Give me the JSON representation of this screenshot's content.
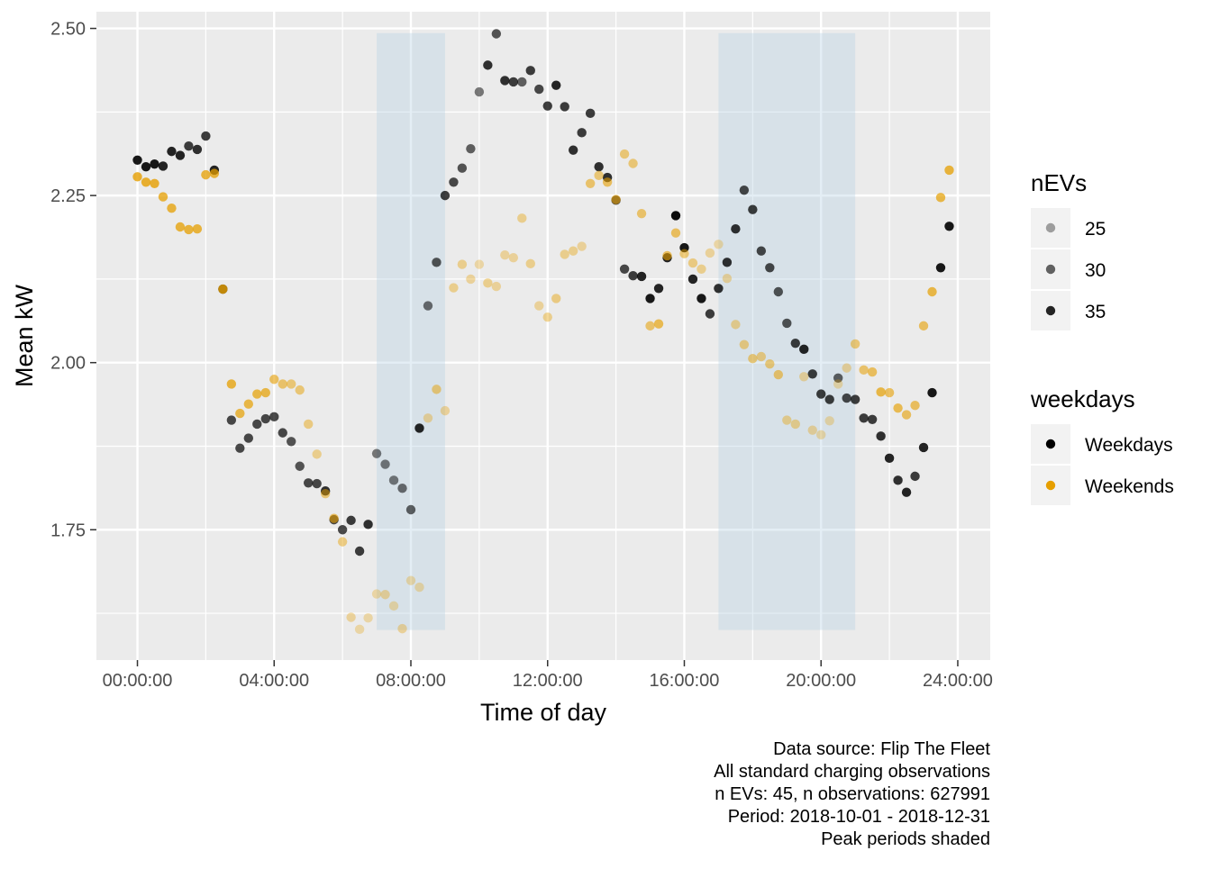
{
  "chart_data": {
    "type": "scatter",
    "xlabel": "Time of day",
    "ylabel": "Mean kW",
    "x_unit": "hours",
    "xlim": [
      -1.2,
      24.95
    ],
    "ylim": [
      1.555,
      2.525
    ],
    "x_ticks": [
      0,
      4,
      8,
      12,
      16,
      20,
      24
    ],
    "x_tick_labels": [
      "00:00:00",
      "04:00:00",
      "08:00:00",
      "12:00:00",
      "16:00:00",
      "20:00:00",
      "24:00:00"
    ],
    "y_ticks": [
      1.75,
      2.0,
      2.25,
      2.5
    ],
    "y_tick_labels": [
      "1.75",
      "2.00",
      "2.25",
      "2.50"
    ],
    "grid": true,
    "shaded_periods": [
      {
        "start": 7,
        "end": 9,
        "ymin": 1.6,
        "ymax": 2.493
      },
      {
        "start": 17,
        "end": 21,
        "ymin": 1.6,
        "ymax": 2.493
      }
    ],
    "legend": {
      "placement": "right",
      "size_title": "nEVs",
      "size_items": [
        {
          "label": "25",
          "alpha": 0.35
        },
        {
          "label": "30",
          "alpha": 0.6
        },
        {
          "label": "35",
          "alpha": 0.85
        }
      ],
      "color_title": "weekdays",
      "color_items": [
        {
          "label": "Weekdays",
          "color": "#000000"
        },
        {
          "label": "Weekends",
          "color": "#E69F00"
        }
      ]
    },
    "series": [
      {
        "name": "Weekdays",
        "color": "#000000",
        "points": [
          [
            0.0,
            2.303,
            0.9
          ],
          [
            0.25,
            2.293,
            0.9
          ],
          [
            0.5,
            2.297,
            0.9
          ],
          [
            0.75,
            2.294,
            0.85
          ],
          [
            1.0,
            2.316,
            0.85
          ],
          [
            1.25,
            2.31,
            0.85
          ],
          [
            1.5,
            2.324,
            0.75
          ],
          [
            1.75,
            2.319,
            0.8
          ],
          [
            2.0,
            2.339,
            0.75
          ],
          [
            2.25,
            2.288,
            0.85
          ],
          [
            2.5,
            2.11,
            0.8
          ],
          [
            2.75,
            1.914,
            0.7
          ],
          [
            3.0,
            1.872,
            0.7
          ],
          [
            3.25,
            1.887,
            0.7
          ],
          [
            3.5,
            1.908,
            0.7
          ],
          [
            3.75,
            1.916,
            0.7
          ],
          [
            4.0,
            1.919,
            0.7
          ],
          [
            4.25,
            1.895,
            0.7
          ],
          [
            4.5,
            1.882,
            0.65
          ],
          [
            4.75,
            1.845,
            0.65
          ],
          [
            5.0,
            1.82,
            0.7
          ],
          [
            5.25,
            1.819,
            0.7
          ],
          [
            5.5,
            1.808,
            0.8
          ],
          [
            5.75,
            1.765,
            0.7
          ],
          [
            6.0,
            1.75,
            0.7
          ],
          [
            6.25,
            1.764,
            0.75
          ],
          [
            6.5,
            1.718,
            0.75
          ],
          [
            6.75,
            1.758,
            0.8
          ],
          [
            7.0,
            1.864,
            0.5
          ],
          [
            7.25,
            1.848,
            0.5
          ],
          [
            7.5,
            1.824,
            0.5
          ],
          [
            7.75,
            1.812,
            0.55
          ],
          [
            8.0,
            1.78,
            0.6
          ],
          [
            8.25,
            1.902,
            0.85
          ],
          [
            8.5,
            2.085,
            0.55
          ],
          [
            8.75,
            2.15,
            0.65
          ],
          [
            9.0,
            2.25,
            0.75
          ],
          [
            9.25,
            2.27,
            0.7
          ],
          [
            9.5,
            2.291,
            0.65
          ],
          [
            9.75,
            2.32,
            0.6
          ],
          [
            10.0,
            2.405,
            0.5
          ],
          [
            10.25,
            2.445,
            0.8
          ],
          [
            10.5,
            2.492,
            0.65
          ],
          [
            10.75,
            2.422,
            0.8
          ],
          [
            11.0,
            2.42,
            0.75
          ],
          [
            11.25,
            2.42,
            0.6
          ],
          [
            11.5,
            2.437,
            0.75
          ],
          [
            11.75,
            2.409,
            0.7
          ],
          [
            12.0,
            2.384,
            0.75
          ],
          [
            12.25,
            2.415,
            0.85
          ],
          [
            12.5,
            2.383,
            0.75
          ],
          [
            12.75,
            2.318,
            0.8
          ],
          [
            13.0,
            2.344,
            0.75
          ],
          [
            13.25,
            2.373,
            0.75
          ],
          [
            13.5,
            2.293,
            0.8
          ],
          [
            13.75,
            2.277,
            0.8
          ],
          [
            14.0,
            2.243,
            0.7
          ],
          [
            14.25,
            2.14,
            0.7
          ],
          [
            14.5,
            2.13,
            0.75
          ],
          [
            14.75,
            2.129,
            0.85
          ],
          [
            15.0,
            2.096,
            0.9
          ],
          [
            15.25,
            2.111,
            0.85
          ],
          [
            15.5,
            2.157,
            0.85
          ],
          [
            15.75,
            2.22,
            0.95
          ],
          [
            16.0,
            2.172,
            0.9
          ],
          [
            16.25,
            2.125,
            0.85
          ],
          [
            16.5,
            2.096,
            0.9
          ],
          [
            16.75,
            2.073,
            0.75
          ],
          [
            17.0,
            2.111,
            0.8
          ],
          [
            17.25,
            2.15,
            0.8
          ],
          [
            17.5,
            2.2,
            0.8
          ],
          [
            17.75,
            2.258,
            0.7
          ],
          [
            18.0,
            2.229,
            0.75
          ],
          [
            18.25,
            2.167,
            0.7
          ],
          [
            18.5,
            2.142,
            0.7
          ],
          [
            18.75,
            2.106,
            0.65
          ],
          [
            19.0,
            2.059,
            0.65
          ],
          [
            19.25,
            2.029,
            0.75
          ],
          [
            19.5,
            2.02,
            0.85
          ],
          [
            19.75,
            1.983,
            0.75
          ],
          [
            20.0,
            1.953,
            0.75
          ],
          [
            20.25,
            1.945,
            0.75
          ],
          [
            20.5,
            1.977,
            0.6
          ],
          [
            20.75,
            1.947,
            0.7
          ],
          [
            21.0,
            1.945,
            0.75
          ],
          [
            21.25,
            1.917,
            0.75
          ],
          [
            21.5,
            1.915,
            0.75
          ],
          [
            21.75,
            1.89,
            0.8
          ],
          [
            22.0,
            1.857,
            0.85
          ],
          [
            22.25,
            1.824,
            0.8
          ],
          [
            22.5,
            1.806,
            0.85
          ],
          [
            22.75,
            1.83,
            0.75
          ],
          [
            23.0,
            1.873,
            0.85
          ],
          [
            23.25,
            1.955,
            0.9
          ],
          [
            23.5,
            2.142,
            0.9
          ],
          [
            23.75,
            2.204,
            0.9
          ]
        ]
      },
      {
        "name": "Weekends",
        "color": "#E69F00",
        "points": [
          [
            0.0,
            2.278,
            0.8
          ],
          [
            0.25,
            2.27,
            0.8
          ],
          [
            0.5,
            2.268,
            0.8
          ],
          [
            0.75,
            2.248,
            0.75
          ],
          [
            1.0,
            2.231,
            0.75
          ],
          [
            1.25,
            2.203,
            0.75
          ],
          [
            1.5,
            2.199,
            0.75
          ],
          [
            1.75,
            2.2,
            0.75
          ],
          [
            2.0,
            2.281,
            0.75
          ],
          [
            2.25,
            2.283,
            0.75
          ],
          [
            2.5,
            2.11,
            0.8
          ],
          [
            2.75,
            1.968,
            0.75
          ],
          [
            3.0,
            1.924,
            0.7
          ],
          [
            3.25,
            1.938,
            0.7
          ],
          [
            3.5,
            1.953,
            0.7
          ],
          [
            3.75,
            1.955,
            0.7
          ],
          [
            4.0,
            1.975,
            0.6
          ],
          [
            4.25,
            1.968,
            0.55
          ],
          [
            4.5,
            1.968,
            0.5
          ],
          [
            4.75,
            1.959,
            0.5
          ],
          [
            5.0,
            1.908,
            0.45
          ],
          [
            5.25,
            1.863,
            0.4
          ],
          [
            5.5,
            1.804,
            0.5
          ],
          [
            5.75,
            1.767,
            0.6
          ],
          [
            6.0,
            1.732,
            0.45
          ],
          [
            6.25,
            1.619,
            0.35
          ],
          [
            6.5,
            1.601,
            0.3
          ],
          [
            6.75,
            1.618,
            0.3
          ],
          [
            7.0,
            1.654,
            0.3
          ],
          [
            7.25,
            1.653,
            0.35
          ],
          [
            7.5,
            1.636,
            0.3
          ],
          [
            7.75,
            1.602,
            0.35
          ],
          [
            8.0,
            1.674,
            0.3
          ],
          [
            8.25,
            1.664,
            0.3
          ],
          [
            8.5,
            1.917,
            0.35
          ],
          [
            8.75,
            1.96,
            0.5
          ],
          [
            9.0,
            1.928,
            0.35
          ],
          [
            9.25,
            2.112,
            0.4
          ],
          [
            9.5,
            2.147,
            0.4
          ],
          [
            9.75,
            2.125,
            0.35
          ],
          [
            10.0,
            2.147,
            0.3
          ],
          [
            10.25,
            2.119,
            0.4
          ],
          [
            10.5,
            2.114,
            0.35
          ],
          [
            10.75,
            2.161,
            0.35
          ],
          [
            11.0,
            2.157,
            0.35
          ],
          [
            11.25,
            2.216,
            0.4
          ],
          [
            11.5,
            2.148,
            0.4
          ],
          [
            11.75,
            2.085,
            0.35
          ],
          [
            12.0,
            2.068,
            0.4
          ],
          [
            12.25,
            2.096,
            0.45
          ],
          [
            12.5,
            2.162,
            0.4
          ],
          [
            12.75,
            2.167,
            0.4
          ],
          [
            13.0,
            2.174,
            0.35
          ],
          [
            13.25,
            2.268,
            0.55
          ],
          [
            13.5,
            2.28,
            0.5
          ],
          [
            13.75,
            2.27,
            0.6
          ],
          [
            14.0,
            2.244,
            0.6
          ],
          [
            14.25,
            2.312,
            0.5
          ],
          [
            14.5,
            2.298,
            0.5
          ],
          [
            14.75,
            2.223,
            0.55
          ],
          [
            15.0,
            2.055,
            0.55
          ],
          [
            15.25,
            2.058,
            0.65
          ],
          [
            15.5,
            2.16,
            0.6
          ],
          [
            15.75,
            2.194,
            0.6
          ],
          [
            16.0,
            2.163,
            0.5
          ],
          [
            16.25,
            2.149,
            0.45
          ],
          [
            16.5,
            2.14,
            0.4
          ],
          [
            16.75,
            2.164,
            0.35
          ],
          [
            17.0,
            2.177,
            0.3
          ],
          [
            17.25,
            2.126,
            0.35
          ],
          [
            17.5,
            2.057,
            0.4
          ],
          [
            17.75,
            2.027,
            0.45
          ],
          [
            18.0,
            2.006,
            0.5
          ],
          [
            18.25,
            2.009,
            0.45
          ],
          [
            18.5,
            1.998,
            0.5
          ],
          [
            18.75,
            1.982,
            0.55
          ],
          [
            19.0,
            1.914,
            0.4
          ],
          [
            19.25,
            1.908,
            0.4
          ],
          [
            19.5,
            1.979,
            0.35
          ],
          [
            19.75,
            1.899,
            0.35
          ],
          [
            20.0,
            1.892,
            0.3
          ],
          [
            20.25,
            1.913,
            0.3
          ],
          [
            20.5,
            1.968,
            0.3
          ],
          [
            20.75,
            1.992,
            0.35
          ],
          [
            21.0,
            2.028,
            0.5
          ],
          [
            21.25,
            1.989,
            0.55
          ],
          [
            21.5,
            1.986,
            0.6
          ],
          [
            21.75,
            1.956,
            0.7
          ],
          [
            22.0,
            1.955,
            0.6
          ],
          [
            22.25,
            1.932,
            0.65
          ],
          [
            22.5,
            1.922,
            0.6
          ],
          [
            22.75,
            1.936,
            0.6
          ],
          [
            23.0,
            2.055,
            0.6
          ],
          [
            23.25,
            2.106,
            0.7
          ],
          [
            23.5,
            2.247,
            0.7
          ],
          [
            23.75,
            2.288,
            0.75
          ]
        ]
      }
    ]
  },
  "caption": {
    "lines": [
      "Data source: Flip The Fleet",
      "All standard charging observations",
      "n EVs: 45, n observations: 627991",
      "Period: 2018-10-01 - 2018-12-31",
      "Peak periods shaded"
    ]
  }
}
